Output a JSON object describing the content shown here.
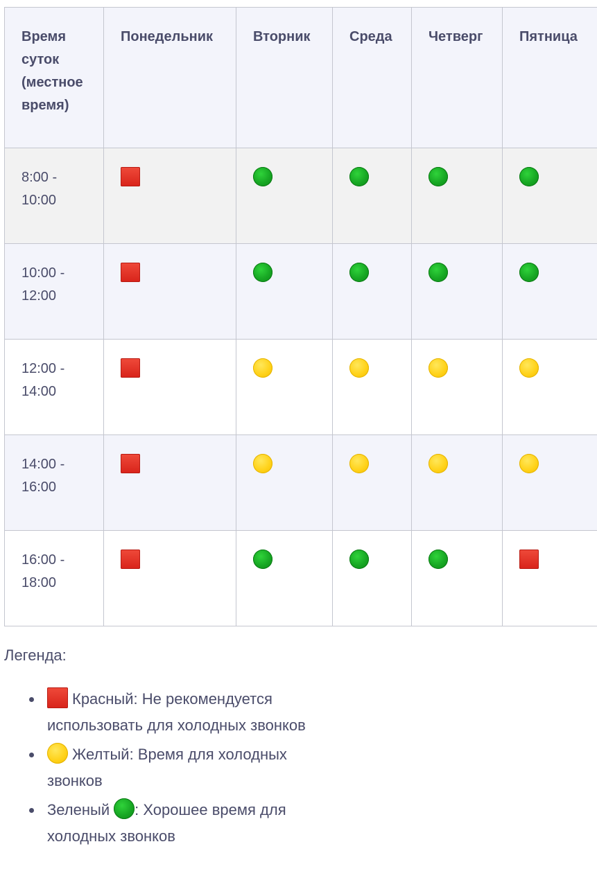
{
  "table": {
    "headers": [
      "Время суток (местное время)",
      "Понедельник",
      "Вторник",
      "Среда",
      "Четверг",
      "Пятница"
    ],
    "rows": [
      {
        "time": "8:00 - 10:00",
        "marks": [
          "red",
          "green",
          "green",
          "green",
          "green"
        ]
      },
      {
        "time": "10:00 - 12:00",
        "marks": [
          "red",
          "green",
          "green",
          "green",
          "green"
        ]
      },
      {
        "time": "12:00 - 14:00",
        "marks": [
          "red",
          "yellow",
          "yellow",
          "yellow",
          "yellow"
        ]
      },
      {
        "time": "14:00 - 16:00",
        "marks": [
          "red",
          "yellow",
          "yellow",
          "yellow",
          "yellow"
        ]
      },
      {
        "time": "16:00 - 18:00",
        "marks": [
          "red",
          "green",
          "green",
          "green",
          "red"
        ]
      }
    ]
  },
  "legend": {
    "title": "Легенда:",
    "items": [
      {
        "icon": "red-square-icon",
        "text": "Красный: Не рекомендуется использовать для холодных звонков"
      },
      {
        "icon": "yellow-circle-icon",
        "text": "Желтый: Время для холодных звонков"
      },
      {
        "icon": "green-circle-icon",
        "label": "Зеленый",
        "text": ": Хорошее время для холодных звонков"
      }
    ]
  },
  "colors": {
    "red": "#dc2a1e",
    "yellow": "#ffd21a",
    "green": "#17a623",
    "text": "#4a4c6a",
    "border": "#c4c6cf"
  }
}
